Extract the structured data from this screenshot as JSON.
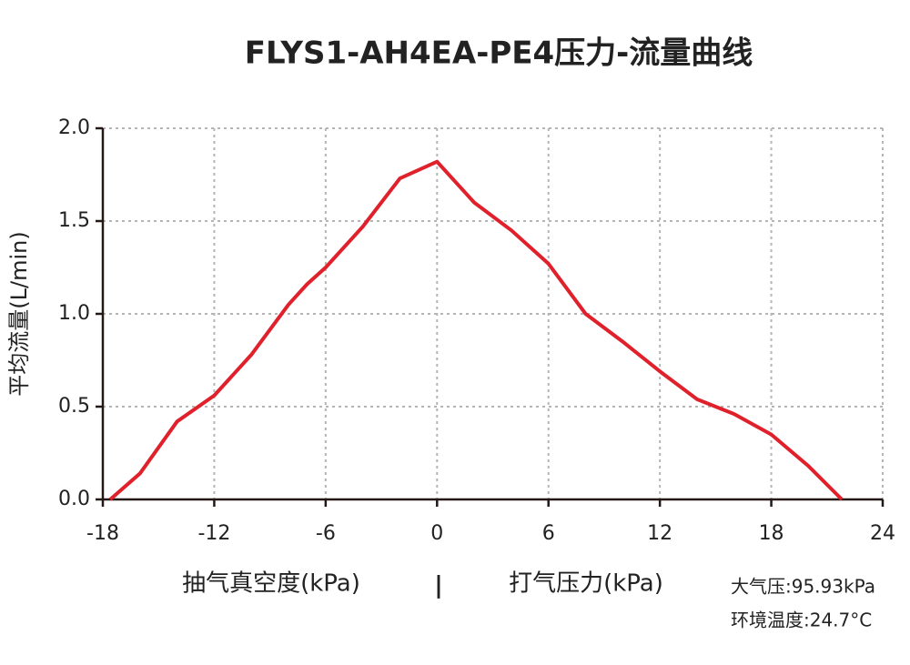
{
  "chart_data": {
    "type": "line",
    "title": "FLYS1-AH4EA-PE4压力-流量曲线",
    "y_label": "平均流量(L/min)",
    "x_label_left": "抽气真空度(kPa)",
    "x_label_separator": "|",
    "x_label_right": "打气压力(kPa)",
    "annotations": [
      "大气压:95.93kPa",
      "环境温度:24.7°C"
    ],
    "x": [
      -17.6,
      -16,
      -14,
      -12,
      -10,
      -8,
      -7,
      -6,
      -4,
      -2,
      0,
      2,
      4,
      6,
      8,
      10,
      12,
      14,
      16,
      18,
      20,
      21.8
    ],
    "series": [
      {
        "name": "流量",
        "color": "#e0202a",
        "values": [
          0,
          0.14,
          0.42,
          0.56,
          0.78,
          1.05,
          1.16,
          1.25,
          1.47,
          1.73,
          1.82,
          1.6,
          1.45,
          1.27,
          1.0,
          0.85,
          0.69,
          0.54,
          0.46,
          0.35,
          0.18,
          0
        ]
      }
    ],
    "xlim": [
      -18,
      24
    ],
    "xticks": [
      -18,
      -12,
      -6,
      0,
      6,
      12,
      18,
      24
    ],
    "ylim": [
      0,
      2
    ],
    "yticks": [
      {
        "value": 0,
        "label": "0.0"
      },
      0.5,
      {
        "value": 1,
        "label": "1.0"
      },
      1.5,
      {
        "value": 2,
        "label": "2.0"
      }
    ],
    "grid": true
  }
}
